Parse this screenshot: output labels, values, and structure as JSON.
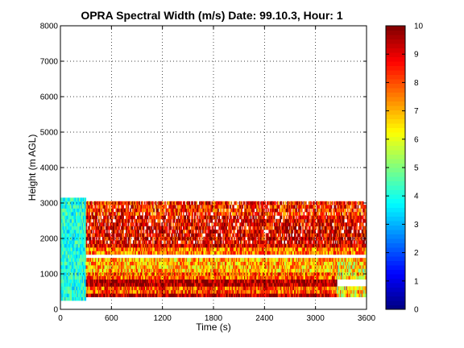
{
  "chart_data": {
    "type": "heatmap",
    "title": "OPRA Spectral Width (m/s)  Date: 99.10.3, Hour: 1",
    "xlabel": "Time (s)",
    "ylabel": "Height (m AGL)",
    "xlim": [
      0,
      3600
    ],
    "ylim": [
      0,
      8000
    ],
    "xticks": [
      0,
      600,
      1200,
      1800,
      2400,
      3000,
      3600
    ],
    "yticks": [
      0,
      1000,
      2000,
      3000,
      4000,
      5000,
      6000,
      7000,
      8000
    ],
    "grid": true,
    "colormap": "jet",
    "colorbar": {
      "min": 0,
      "max": 10,
      "ticks": [
        0,
        1,
        2,
        3,
        4,
        5,
        6,
        7,
        8,
        9,
        10
      ]
    },
    "data_extent": {
      "time_s": [
        0,
        3600
      ],
      "height_m": [
        250,
        3200
      ]
    },
    "bands": [
      {
        "height_m": [
          300,
          430
        ],
        "time_s": [
          0,
          3600
        ],
        "value": 9.5
      },
      {
        "height_m": [
          430,
          650
        ],
        "time_s": [
          0,
          3600
        ],
        "value": 8.0
      },
      {
        "height_m": [
          650,
          820
        ],
        "time_s": [
          300,
          3250
        ],
        "value": 9.7
      },
      {
        "height_m": [
          820,
          1000
        ],
        "time_s": [
          300,
          3600
        ],
        "value": 7.8
      },
      {
        "height_m": [
          1000,
          1450
        ],
        "time_s": [
          300,
          3600
        ],
        "value": 7.0
      },
      {
        "height_m": [
          1500,
          1750
        ],
        "time_s": [
          300,
          3600
        ],
        "value": 7.6
      },
      {
        "height_m": [
          1750,
          2600
        ],
        "time_s": [
          300,
          3600
        ],
        "value": 9.0
      },
      {
        "height_m": [
          2600,
          3000
        ],
        "time_s": [
          300,
          3600
        ],
        "value": 8.4
      },
      {
        "height_m": [
          250,
          3100
        ],
        "time_s": [
          0,
          300
        ],
        "value": 4.0
      }
    ]
  }
}
